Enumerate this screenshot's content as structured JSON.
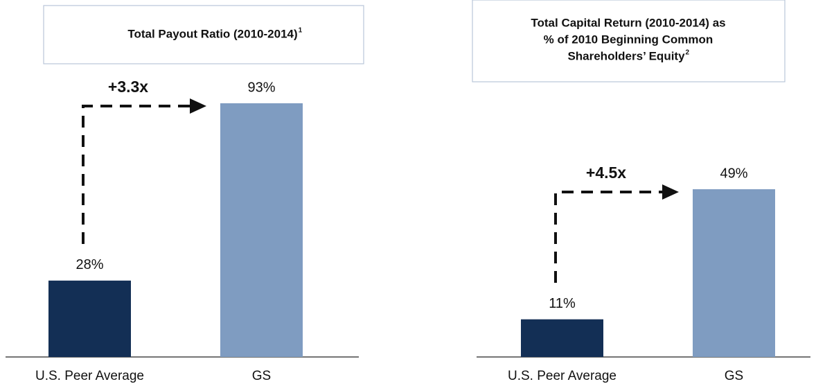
{
  "chart_data": [
    {
      "type": "bar",
      "title": [
        "Total Payout Ratio (2010-2014)"
      ],
      "title_note": "1",
      "categories": [
        "U.S. Peer Average",
        "GS"
      ],
      "values": [
        28,
        93
      ],
      "value_labels": [
        "28%",
        "93%"
      ],
      "colors": [
        "#132f55",
        "#7f9cc1"
      ],
      "annotation": "+3.3x"
    },
    {
      "type": "bar",
      "title": [
        "Total Capital Return (2010-2014) as",
        "% of 2010 Beginning Common",
        "Shareholders’ Equity"
      ],
      "title_note": "2",
      "categories": [
        "U.S. Peer Average",
        "GS"
      ],
      "values": [
        11,
        49
      ],
      "value_labels": [
        "11%",
        "49%"
      ],
      "colors": [
        "#132f55",
        "#7f9cc1"
      ],
      "annotation": "+4.5x"
    }
  ]
}
